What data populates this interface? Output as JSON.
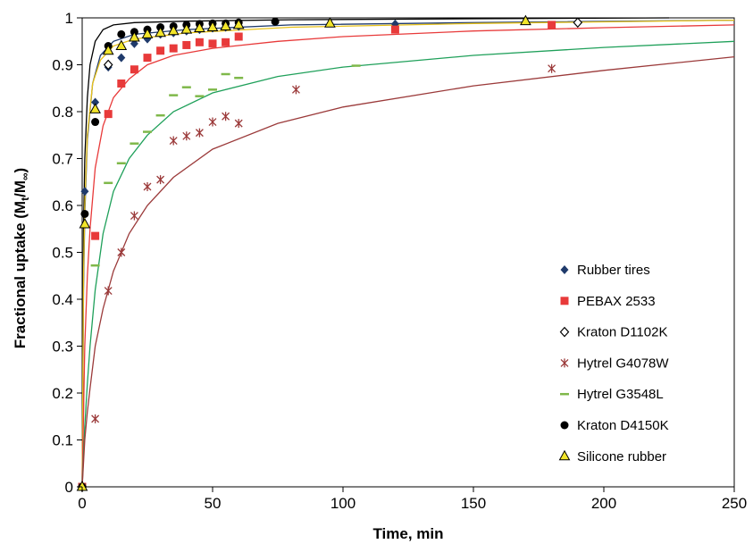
{
  "chart_data": {
    "type": "scatter",
    "xlabel": "Time, min",
    "ylabel_main": "Fractional uptake (M",
    "ylabel_sub1": "t",
    "ylabel_mid": "/M",
    "ylabel_sub2": "∞",
    "ylabel_end": ")",
    "xlim": [
      0,
      250
    ],
    "ylim": [
      0,
      1
    ],
    "x_ticks": [
      "0",
      "50",
      "100",
      "150",
      "200",
      "250"
    ],
    "y_ticks": [
      "0",
      "0.1",
      "0.2",
      "0.3",
      "0.4",
      "0.5",
      "0.6",
      "0.7",
      "0.8",
      "0.9",
      "1"
    ],
    "grid": false,
    "legend_position": "bottom-right",
    "series": [
      {
        "name": "Rubber tires",
        "marker": "diamond",
        "color": "#1f3a6b",
        "points": [
          [
            0,
            0
          ],
          [
            1,
            0.63
          ],
          [
            5,
            0.82
          ],
          [
            10,
            0.895
          ],
          [
            15,
            0.915
          ],
          [
            20,
            0.945
          ],
          [
            25,
            0.955
          ],
          [
            30,
            0.965
          ],
          [
            35,
            0.968
          ],
          [
            40,
            0.972
          ],
          [
            45,
            0.975
          ],
          [
            50,
            0.978
          ],
          [
            55,
            0.98
          ],
          [
            60,
            0.982
          ],
          [
            120,
            0.987
          ],
          [
            190,
            0.99
          ]
        ]
      },
      {
        "name": "PEBAX 2533",
        "marker": "square",
        "color": "#e83a3a",
        "points": [
          [
            0,
            0
          ],
          [
            5,
            0.535
          ],
          [
            10,
            0.795
          ],
          [
            15,
            0.86
          ],
          [
            20,
            0.89
          ],
          [
            25,
            0.915
          ],
          [
            30,
            0.93
          ],
          [
            35,
            0.935
          ],
          [
            40,
            0.942
          ],
          [
            45,
            0.948
          ],
          [
            50,
            0.945
          ],
          [
            55,
            0.948
          ],
          [
            60,
            0.96
          ],
          [
            120,
            0.975
          ],
          [
            180,
            0.985
          ]
        ]
      },
      {
        "name": "Kraton D1102K",
        "marker": "diamond-open",
        "color": "#000000",
        "points": [
          [
            0,
            0
          ],
          [
            10,
            0.9
          ],
          [
            190,
            0.99
          ]
        ]
      },
      {
        "name": "Hytrel G4078W",
        "marker": "asterisk",
        "color": "#9b3a3a",
        "points": [
          [
            0,
            0
          ],
          [
            5,
            0.145
          ],
          [
            10,
            0.418
          ],
          [
            15,
            0.5
          ],
          [
            20,
            0.578
          ],
          [
            25,
            0.64
          ],
          [
            30,
            0.655
          ],
          [
            35,
            0.738
          ],
          [
            40,
            0.748
          ],
          [
            45,
            0.755
          ],
          [
            50,
            0.778
          ],
          [
            55,
            0.79
          ],
          [
            60,
            0.775
          ],
          [
            82,
            0.847
          ],
          [
            180,
            0.892
          ]
        ]
      },
      {
        "name": "Hytrel G3548L",
        "marker": "dash",
        "color": "#7fb84a",
        "points": [
          [
            5,
            0.472
          ],
          [
            10,
            0.648
          ],
          [
            15,
            0.69
          ],
          [
            20,
            0.732
          ],
          [
            25,
            0.757
          ],
          [
            30,
            0.792
          ],
          [
            35,
            0.835
          ],
          [
            40,
            0.852
          ],
          [
            45,
            0.833
          ],
          [
            50,
            0.847
          ],
          [
            55,
            0.88
          ],
          [
            60,
            0.872
          ],
          [
            105,
            0.898
          ]
        ]
      },
      {
        "name": "Kraton D4150K",
        "marker": "circle",
        "color": "#000000",
        "points": [
          [
            0,
            0
          ],
          [
            1,
            0.582
          ],
          [
            5,
            0.778
          ],
          [
            10,
            0.94
          ],
          [
            15,
            0.965
          ],
          [
            20,
            0.97
          ],
          [
            25,
            0.975
          ],
          [
            30,
            0.98
          ],
          [
            35,
            0.982
          ],
          [
            40,
            0.985
          ],
          [
            45,
            0.987
          ],
          [
            50,
            0.988
          ],
          [
            55,
            0.988
          ],
          [
            60,
            0.99
          ],
          [
            74,
            0.992
          ]
        ]
      },
      {
        "name": "Silicone rubber",
        "marker": "triangle",
        "color": "#f2e52a",
        "points": [
          [
            0,
            0
          ],
          [
            1,
            0.56
          ],
          [
            5,
            0.805
          ],
          [
            10,
            0.93
          ],
          [
            15,
            0.94
          ],
          [
            20,
            0.958
          ],
          [
            25,
            0.965
          ],
          [
            30,
            0.968
          ],
          [
            35,
            0.972
          ],
          [
            40,
            0.975
          ],
          [
            45,
            0.978
          ],
          [
            50,
            0.98
          ],
          [
            55,
            0.982
          ],
          [
            60,
            0.985
          ],
          [
            95,
            0.988
          ],
          [
            170,
            0.993
          ]
        ]
      }
    ],
    "fit_curves": [
      {
        "color": "#000000",
        "points": [
          [
            0,
            0
          ],
          [
            0.5,
            0.55
          ],
          [
            1,
            0.7
          ],
          [
            2,
            0.83
          ],
          [
            3,
            0.9
          ],
          [
            5,
            0.95
          ],
          [
            8,
            0.975
          ],
          [
            12,
            0.985
          ],
          [
            20,
            0.99
          ],
          [
            40,
            0.993
          ],
          [
            80,
            0.996
          ],
          [
            150,
            0.998
          ],
          [
            225,
            1.0
          ]
        ]
      },
      {
        "color": "#1f3a6b",
        "points": [
          [
            0,
            0
          ],
          [
            0.5,
            0.42
          ],
          [
            1,
            0.58
          ],
          [
            2,
            0.74
          ],
          [
            4,
            0.86
          ],
          [
            7,
            0.92
          ],
          [
            12,
            0.95
          ],
          [
            20,
            0.965
          ],
          [
            40,
            0.975
          ],
          [
            80,
            0.985
          ],
          [
            150,
            0.99
          ],
          [
            250,
            0.995
          ]
        ]
      },
      {
        "color": "#e8c21a",
        "points": [
          [
            0,
            0
          ],
          [
            0.5,
            0.45
          ],
          [
            1,
            0.6
          ],
          [
            2,
            0.75
          ],
          [
            4,
            0.86
          ],
          [
            7,
            0.91
          ],
          [
            12,
            0.94
          ],
          [
            20,
            0.955
          ],
          [
            40,
            0.968
          ],
          [
            80,
            0.98
          ],
          [
            150,
            0.988
          ],
          [
            250,
            0.995
          ]
        ]
      },
      {
        "color": "#e83a3a",
        "points": [
          [
            0,
            0
          ],
          [
            1,
            0.3
          ],
          [
            2,
            0.45
          ],
          [
            3,
            0.55
          ],
          [
            5,
            0.68
          ],
          [
            8,
            0.77
          ],
          [
            12,
            0.83
          ],
          [
            18,
            0.87
          ],
          [
            25,
            0.9
          ],
          [
            35,
            0.92
          ],
          [
            50,
            0.935
          ],
          [
            75,
            0.95
          ],
          [
            100,
            0.96
          ],
          [
            150,
            0.972
          ],
          [
            200,
            0.979
          ],
          [
            250,
            0.985
          ]
        ]
      },
      {
        "color": "#1fa05a",
        "points": [
          [
            0,
            0
          ],
          [
            1,
            0.13
          ],
          [
            2,
            0.22
          ],
          [
            3,
            0.3
          ],
          [
            5,
            0.42
          ],
          [
            8,
            0.54
          ],
          [
            12,
            0.63
          ],
          [
            18,
            0.7
          ],
          [
            25,
            0.75
          ],
          [
            35,
            0.8
          ],
          [
            50,
            0.84
          ],
          [
            75,
            0.875
          ],
          [
            100,
            0.895
          ],
          [
            150,
            0.92
          ],
          [
            200,
            0.937
          ],
          [
            250,
            0.95
          ]
        ]
      },
      {
        "color": "#9b3a3a",
        "points": [
          [
            0,
            0
          ],
          [
            1,
            0.1
          ],
          [
            2,
            0.16
          ],
          [
            3,
            0.21
          ],
          [
            5,
            0.3
          ],
          [
            8,
            0.38
          ],
          [
            12,
            0.46
          ],
          [
            18,
            0.54
          ],
          [
            25,
            0.6
          ],
          [
            35,
            0.66
          ],
          [
            50,
            0.72
          ],
          [
            75,
            0.775
          ],
          [
            100,
            0.81
          ],
          [
            150,
            0.855
          ],
          [
            200,
            0.888
          ],
          [
            250,
            0.917
          ]
        ]
      }
    ]
  }
}
